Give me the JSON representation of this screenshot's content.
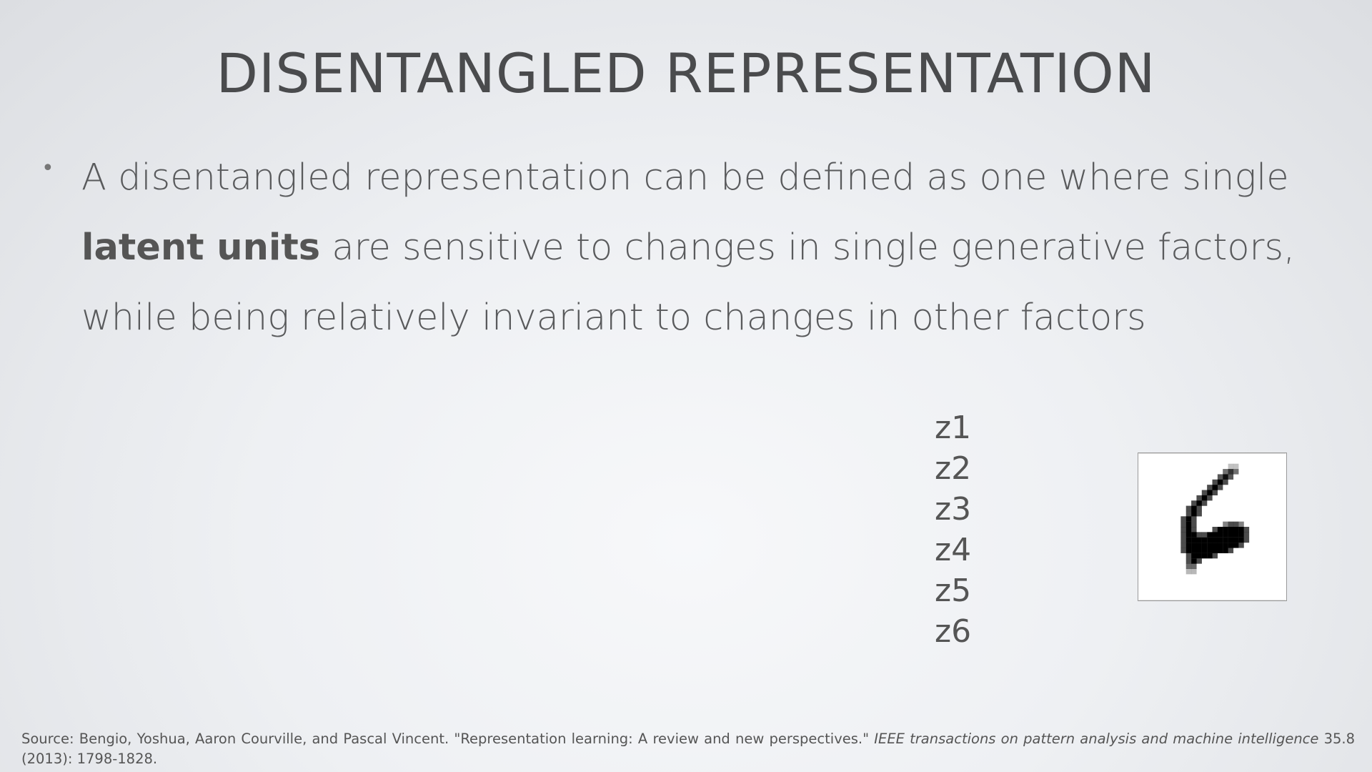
{
  "slide": {
    "title": "DISENTANGLED REPRESENTATION",
    "bullet": {
      "part1": "A disentangled representation can be defined as one where single ",
      "bold": "latent units",
      "part2": " are sensitive to changes in single generative factors, while being relatively invariant to changes in other factors"
    },
    "latents": [
      "z1",
      "z2",
      "z3",
      "z4",
      "z5",
      "z6"
    ],
    "image": {
      "icon": "digit-six-image",
      "pixel_color": "#000000"
    },
    "footer": {
      "prefix": "Source: Bengio, Yoshua, Aaron Courville, and Pascal Vincent. \"Representation learning: A review and new perspectives.\" ",
      "journal": "IEEE transactions on pattern analysis and machine intelligence",
      "suffix": " 35.8 (2013): 1798-1828."
    }
  }
}
